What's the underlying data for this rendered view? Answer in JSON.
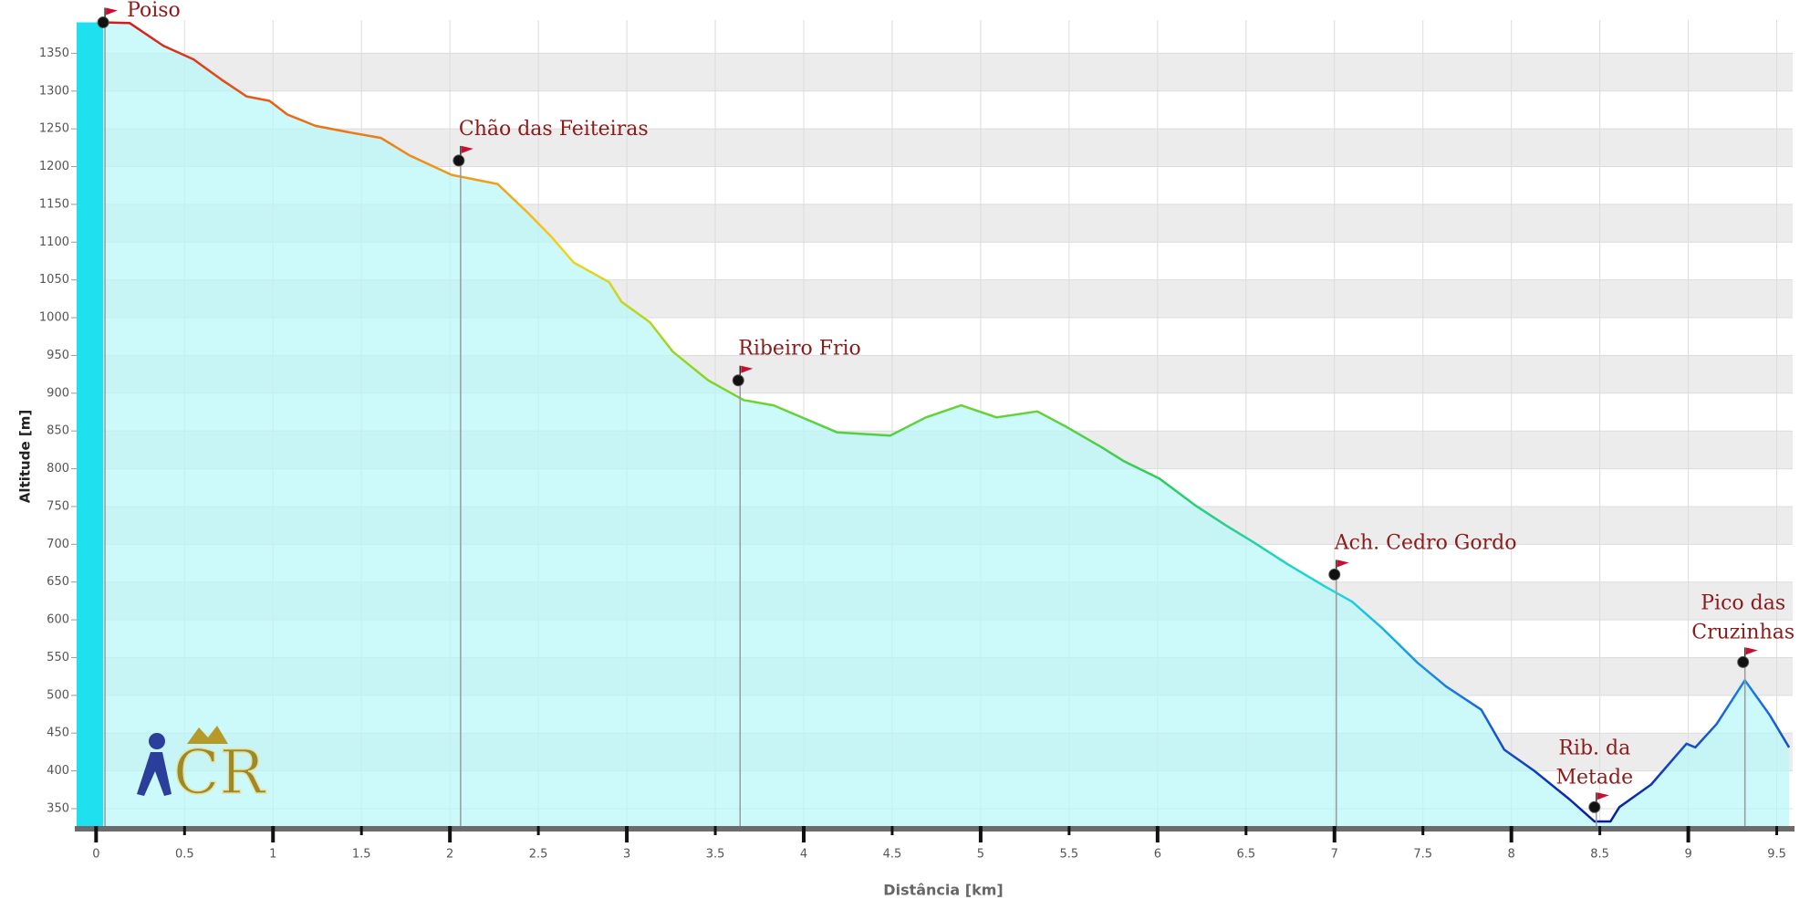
{
  "chart_data": {
    "type": "area",
    "x_label": "Distância [km]",
    "y_label": "Altitude [m]",
    "x": [
      0.04,
      0.19,
      0.38,
      0.55,
      0.71,
      0.85,
      0.98,
      1.08,
      1.24,
      1.44,
      1.61,
      1.77,
      2.01,
      2.14,
      2.27,
      2.44,
      2.57,
      2.7,
      2.9,
      2.97,
      3.13,
      3.26,
      3.46,
      3.66,
      3.83,
      4.03,
      4.19,
      4.49,
      4.69,
      4.89,
      5.09,
      5.32,
      5.48,
      5.68,
      5.81,
      6.01,
      6.21,
      6.38,
      6.54,
      6.74,
      6.94,
      7.1,
      7.27,
      7.47,
      7.63,
      7.83,
      7.96,
      8.13,
      8.33,
      8.47,
      8.56,
      8.61,
      8.79,
      8.99,
      9.04,
      9.16,
      9.32,
      9.46,
      9.57
    ],
    "values": [
      1391,
      1390,
      1360,
      1342,
      1315,
      1293,
      1287,
      1269,
      1254,
      1245,
      1238,
      1215,
      1189,
      1183,
      1177,
      1139,
      1108,
      1073,
      1047,
      1021,
      994,
      955,
      917,
      891,
      884,
      864,
      848,
      844,
      868,
      884,
      868,
      876,
      856,
      829,
      810,
      787,
      752,
      726,
      703,
      673,
      645,
      624,
      589,
      543,
      512,
      481,
      428,
      400,
      362,
      333,
      333,
      352,
      382,
      436,
      431,
      462,
      520,
      474,
      431
    ],
    "line_gradient": [
      "#d7191c",
      "#f07a14",
      "#f2d51e",
      "#8fd61f",
      "#2ccc5a",
      "#1ed6e0",
      "#1a6ae0",
      "#0a1a9c"
    ],
    "fill_color": "#b8f6f6",
    "xlim": [
      -0.11,
      9.59
    ],
    "ylim": [
      327,
      1394
    ],
    "xticks": [
      0,
      0.5,
      1,
      1.5,
      2,
      2.5,
      3,
      3.5,
      4,
      4.5,
      5,
      5.5,
      6,
      6.5,
      7,
      7.5,
      8,
      8.5,
      9,
      9.5
    ],
    "yticks": [
      350,
      400,
      450,
      500,
      550,
      600,
      650,
      700,
      750,
      800,
      850,
      900,
      950,
      1000,
      1050,
      1100,
      1150,
      1200,
      1250,
      1300,
      1350
    ],
    "grid": true,
    "waypoints": [
      {
        "label": [
          "Poiso"
        ],
        "x": 0.04,
        "y": 1391
      },
      {
        "label": [
          "Chão das Feiteiras"
        ],
        "x": 2.05,
        "y": 1208
      },
      {
        "label": [
          "Ribeiro Frio"
        ],
        "x": 3.63,
        "y": 917
      },
      {
        "label": [
          "Ach. Cedro Gordo"
        ],
        "x": 7.0,
        "y": 660
      },
      {
        "label": [
          "Rib. da",
          "Metade"
        ],
        "x": 8.47,
        "y": 352
      },
      {
        "label": [
          "Pico das",
          "Cruzinhas"
        ],
        "x": 9.31,
        "y": 544
      }
    ],
    "logo": "CR"
  }
}
